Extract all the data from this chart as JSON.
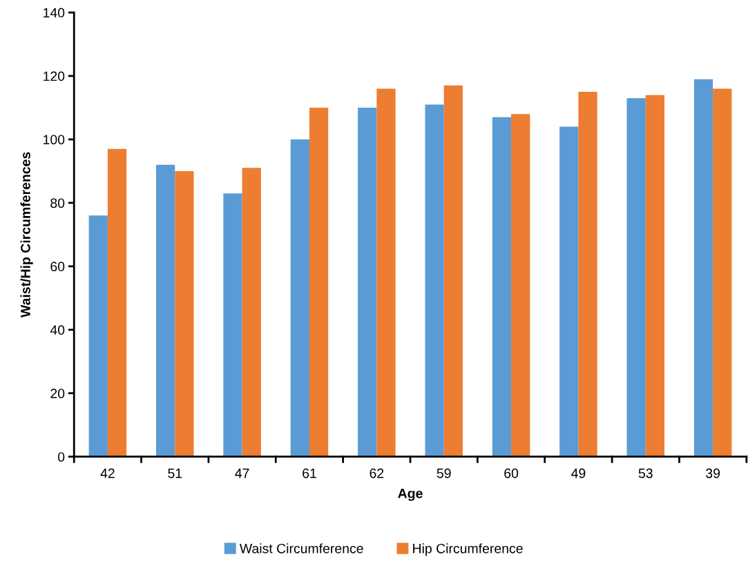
{
  "chart_data": {
    "type": "bar",
    "xlabel": "Age",
    "ylabel": "Waist/Hip Circumferences",
    "categories": [
      "42",
      "51",
      "47",
      "61",
      "62",
      "59",
      "60",
      "49",
      "53",
      "39"
    ],
    "series": [
      {
        "name": "Waist Circumference",
        "color": "#5b9bd5",
        "values": [
          76,
          92,
          83,
          100,
          110,
          111,
          107,
          104,
          113,
          119
        ]
      },
      {
        "name": "Hip Circumference",
        "color": "#ed7d31",
        "values": [
          97,
          90,
          91,
          110,
          116,
          117,
          108,
          115,
          114,
          116
        ]
      }
    ],
    "ylim": [
      0,
      140
    ],
    "yticks": [
      0,
      20,
      40,
      60,
      80,
      100,
      120,
      140
    ],
    "grid": false,
    "legend": "bottom"
  }
}
